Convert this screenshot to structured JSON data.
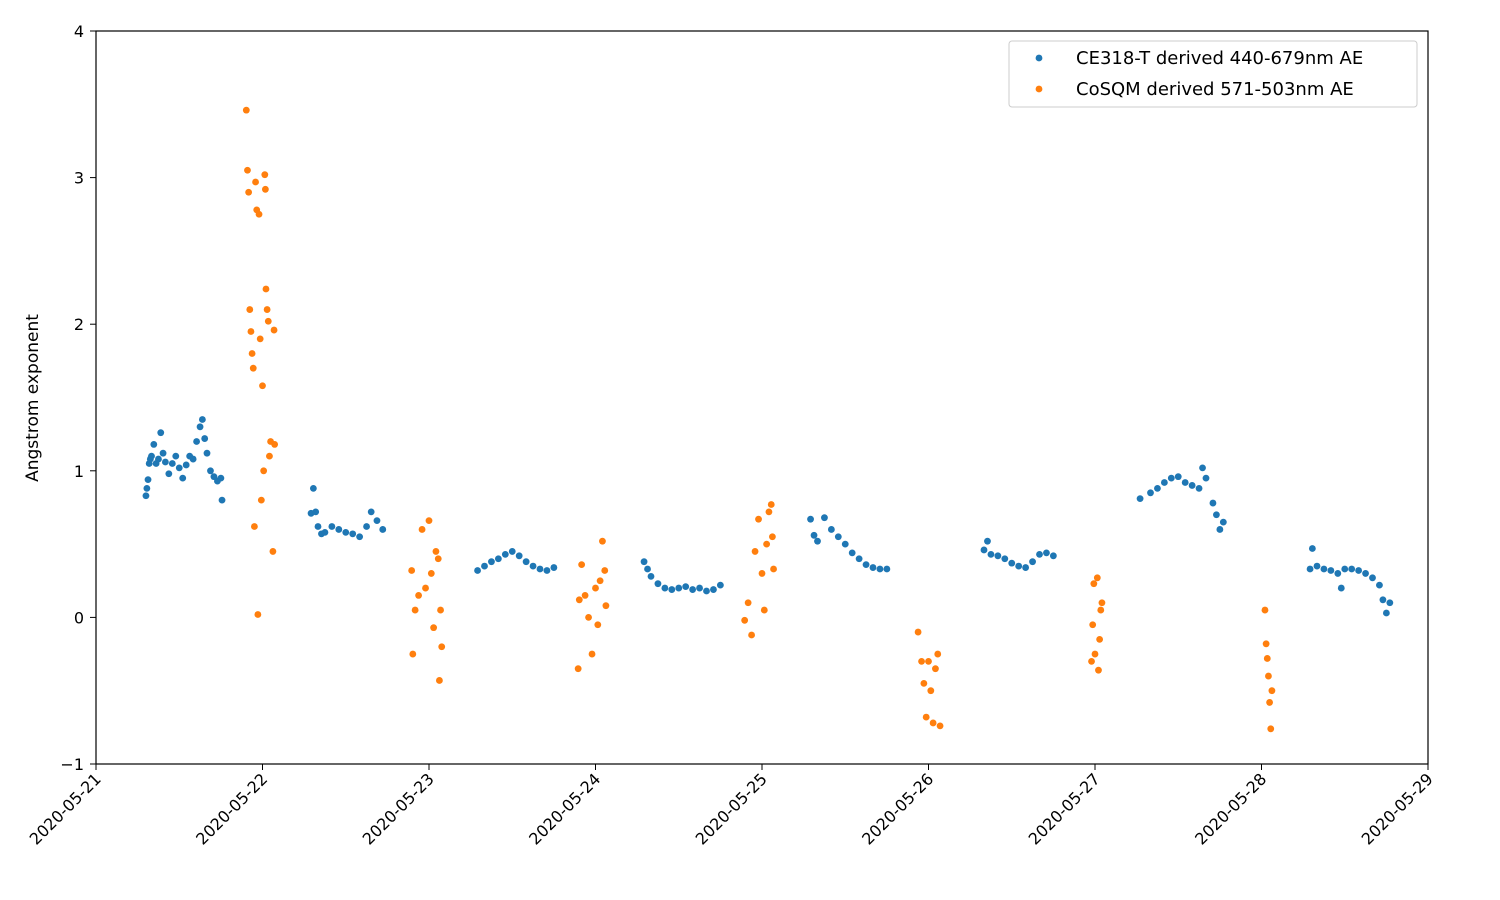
{
  "chart_data": {
    "type": "scatter",
    "title": "",
    "xlabel": "",
    "ylabel": "Angstrom exponent",
    "xlim": [
      "2020-05-21",
      "2020-05-29"
    ],
    "ylim": [
      -1,
      4
    ],
    "x_ticks": [
      "2020-05-21",
      "2020-05-22",
      "2020-05-23",
      "2020-05-24",
      "2020-05-25",
      "2020-05-26",
      "2020-05-27",
      "2020-05-28",
      "2020-05-29"
    ],
    "y_ticks": [
      "−1",
      "0",
      "1",
      "2",
      "3",
      "4"
    ],
    "grid": false,
    "legend_position": "top-right",
    "series": [
      {
        "name": "CE318-T derived 440-679nm AE",
        "color": "#1f77b4",
        "points": [
          [
            "2020-05-21 07:12",
            0.83
          ],
          [
            "2020-05-21 07:20",
            0.88
          ],
          [
            "2020-05-21 07:30",
            0.94
          ],
          [
            "2020-05-21 07:40",
            1.05
          ],
          [
            "2020-05-21 07:50",
            1.08
          ],
          [
            "2020-05-21 08:00",
            1.1
          ],
          [
            "2020-05-21 08:20",
            1.18
          ],
          [
            "2020-05-21 08:40",
            1.05
          ],
          [
            "2020-05-21 09:00",
            1.08
          ],
          [
            "2020-05-21 09:20",
            1.26
          ],
          [
            "2020-05-21 09:40",
            1.12
          ],
          [
            "2020-05-21 10:00",
            1.06
          ],
          [
            "2020-05-21 10:30",
            0.98
          ],
          [
            "2020-05-21 11:00",
            1.05
          ],
          [
            "2020-05-21 11:30",
            1.1
          ],
          [
            "2020-05-21 12:00",
            1.02
          ],
          [
            "2020-05-21 12:30",
            0.95
          ],
          [
            "2020-05-21 13:00",
            1.04
          ],
          [
            "2020-05-21 13:30",
            1.1
          ],
          [
            "2020-05-21 14:00",
            1.08
          ],
          [
            "2020-05-21 14:30",
            1.2
          ],
          [
            "2020-05-21 15:00",
            1.3
          ],
          [
            "2020-05-21 15:20",
            1.35
          ],
          [
            "2020-05-21 15:40",
            1.22
          ],
          [
            "2020-05-21 16:00",
            1.12
          ],
          [
            "2020-05-21 16:30",
            1.0
          ],
          [
            "2020-05-21 17:00",
            0.96
          ],
          [
            "2020-05-21 17:30",
            0.93
          ],
          [
            "2020-05-21 18:00",
            0.95
          ],
          [
            "2020-05-21 18:10",
            0.8
          ],
          [
            "2020-05-22 07:00",
            0.71
          ],
          [
            "2020-05-22 07:20",
            0.88
          ],
          [
            "2020-05-22 07:40",
            0.72
          ],
          [
            "2020-05-22 08:00",
            0.62
          ],
          [
            "2020-05-22 08:30",
            0.57
          ],
          [
            "2020-05-22 09:00",
            0.58
          ],
          [
            "2020-05-22 10:00",
            0.62
          ],
          [
            "2020-05-22 11:00",
            0.6
          ],
          [
            "2020-05-22 12:00",
            0.58
          ],
          [
            "2020-05-22 13:00",
            0.57
          ],
          [
            "2020-05-22 14:00",
            0.55
          ],
          [
            "2020-05-22 15:00",
            0.62
          ],
          [
            "2020-05-22 15:40",
            0.72
          ],
          [
            "2020-05-22 16:30",
            0.66
          ],
          [
            "2020-05-22 17:20",
            0.6
          ],
          [
            "2020-05-23 07:00",
            0.32
          ],
          [
            "2020-05-23 08:00",
            0.35
          ],
          [
            "2020-05-23 09:00",
            0.38
          ],
          [
            "2020-05-23 10:00",
            0.4
          ],
          [
            "2020-05-23 11:00",
            0.43
          ],
          [
            "2020-05-23 12:00",
            0.45
          ],
          [
            "2020-05-23 13:00",
            0.42
          ],
          [
            "2020-05-23 14:00",
            0.38
          ],
          [
            "2020-05-23 15:00",
            0.35
          ],
          [
            "2020-05-23 16:00",
            0.33
          ],
          [
            "2020-05-23 17:00",
            0.32
          ],
          [
            "2020-05-23 18:00",
            0.34
          ],
          [
            "2020-05-24 07:00",
            0.38
          ],
          [
            "2020-05-24 07:30",
            0.33
          ],
          [
            "2020-05-24 08:00",
            0.28
          ],
          [
            "2020-05-24 09:00",
            0.23
          ],
          [
            "2020-05-24 10:00",
            0.2
          ],
          [
            "2020-05-24 11:00",
            0.19
          ],
          [
            "2020-05-24 12:00",
            0.2
          ],
          [
            "2020-05-24 13:00",
            0.21
          ],
          [
            "2020-05-24 14:00",
            0.19
          ],
          [
            "2020-05-24 15:00",
            0.2
          ],
          [
            "2020-05-24 16:00",
            0.18
          ],
          [
            "2020-05-24 17:00",
            0.19
          ],
          [
            "2020-05-24 18:00",
            0.22
          ],
          [
            "2020-05-25 07:00",
            0.67
          ],
          [
            "2020-05-25 07:30",
            0.56
          ],
          [
            "2020-05-25 08:00",
            0.52
          ],
          [
            "2020-05-25 09:00",
            0.68
          ],
          [
            "2020-05-25 10:00",
            0.6
          ],
          [
            "2020-05-25 11:00",
            0.55
          ],
          [
            "2020-05-25 12:00",
            0.5
          ],
          [
            "2020-05-25 13:00",
            0.44
          ],
          [
            "2020-05-25 14:00",
            0.4
          ],
          [
            "2020-05-25 15:00",
            0.36
          ],
          [
            "2020-05-25 16:00",
            0.34
          ],
          [
            "2020-05-25 17:00",
            0.33
          ],
          [
            "2020-05-25 18:00",
            0.33
          ],
          [
            "2020-05-26 08:00",
            0.46
          ],
          [
            "2020-05-26 08:30",
            0.52
          ],
          [
            "2020-05-26 09:00",
            0.43
          ],
          [
            "2020-05-26 10:00",
            0.42
          ],
          [
            "2020-05-26 11:00",
            0.4
          ],
          [
            "2020-05-26 12:00",
            0.37
          ],
          [
            "2020-05-26 13:00",
            0.35
          ],
          [
            "2020-05-26 14:00",
            0.34
          ],
          [
            "2020-05-26 15:00",
            0.38
          ],
          [
            "2020-05-26 16:00",
            0.43
          ],
          [
            "2020-05-26 17:00",
            0.44
          ],
          [
            "2020-05-26 18:00",
            0.42
          ],
          [
            "2020-05-27 06:30",
            0.81
          ],
          [
            "2020-05-27 08:00",
            0.85
          ],
          [
            "2020-05-27 09:00",
            0.88
          ],
          [
            "2020-05-27 10:00",
            0.92
          ],
          [
            "2020-05-27 11:00",
            0.95
          ],
          [
            "2020-05-27 12:00",
            0.96
          ],
          [
            "2020-05-27 13:00",
            0.92
          ],
          [
            "2020-05-27 14:00",
            0.9
          ],
          [
            "2020-05-27 15:00",
            0.88
          ],
          [
            "2020-05-27 15:30",
            1.02
          ],
          [
            "2020-05-27 16:00",
            0.95
          ],
          [
            "2020-05-27 17:00",
            0.78
          ],
          [
            "2020-05-27 17:30",
            0.7
          ],
          [
            "2020-05-27 18:00",
            0.6
          ],
          [
            "2020-05-27 18:30",
            0.65
          ],
          [
            "2020-05-28 07:00",
            0.33
          ],
          [
            "2020-05-28 07:20",
            0.47
          ],
          [
            "2020-05-28 08:00",
            0.35
          ],
          [
            "2020-05-28 09:00",
            0.33
          ],
          [
            "2020-05-28 10:00",
            0.32
          ],
          [
            "2020-05-28 11:00",
            0.3
          ],
          [
            "2020-05-28 11:30",
            0.2
          ],
          [
            "2020-05-28 12:00",
            0.33
          ],
          [
            "2020-05-28 13:00",
            0.33
          ],
          [
            "2020-05-28 14:00",
            0.32
          ],
          [
            "2020-05-28 15:00",
            0.3
          ],
          [
            "2020-05-28 16:00",
            0.27
          ],
          [
            "2020-05-28 17:00",
            0.22
          ],
          [
            "2020-05-28 17:30",
            0.12
          ],
          [
            "2020-05-28 18:00",
            0.03
          ],
          [
            "2020-05-28 18:30",
            0.1
          ]
        ]
      },
      {
        "name": "CoSQM derived 571-503nm AE",
        "color": "#ff7f0e",
        "points": [
          [
            "2020-05-21 21:40",
            3.46
          ],
          [
            "2020-05-21 21:50",
            3.05
          ],
          [
            "2020-05-21 22:00",
            2.9
          ],
          [
            "2020-05-21 22:10",
            2.1
          ],
          [
            "2020-05-21 22:20",
            1.95
          ],
          [
            "2020-05-21 22:30",
            1.8
          ],
          [
            "2020-05-21 22:40",
            1.7
          ],
          [
            "2020-05-21 22:50",
            0.62
          ],
          [
            "2020-05-21 23:00",
            2.97
          ],
          [
            "2020-05-21 23:10",
            2.78
          ],
          [
            "2020-05-21 23:20",
            0.02
          ],
          [
            "2020-05-21 23:30",
            2.75
          ],
          [
            "2020-05-21 23:40",
            1.9
          ],
          [
            "2020-05-21 23:50",
            0.8
          ],
          [
            "2020-05-22 00:00",
            1.58
          ],
          [
            "2020-05-22 00:10",
            1.0
          ],
          [
            "2020-05-22 00:20",
            3.02
          ],
          [
            "2020-05-22 00:25",
            2.92
          ],
          [
            "2020-05-22 00:30",
            2.24
          ],
          [
            "2020-05-22 00:40",
            2.1
          ],
          [
            "2020-05-22 00:50",
            2.02
          ],
          [
            "2020-05-22 01:00",
            1.1
          ],
          [
            "2020-05-22 01:10",
            1.2
          ],
          [
            "2020-05-22 01:30",
            0.45
          ],
          [
            "2020-05-22 01:40",
            1.96
          ],
          [
            "2020-05-22 01:45",
            1.18
          ],
          [
            "2020-05-22 21:30",
            0.32
          ],
          [
            "2020-05-22 21:40",
            -0.25
          ],
          [
            "2020-05-22 22:00",
            0.05
          ],
          [
            "2020-05-22 22:30",
            0.15
          ],
          [
            "2020-05-22 23:00",
            0.6
          ],
          [
            "2020-05-22 23:30",
            0.2
          ],
          [
            "2020-05-23 00:00",
            0.66
          ],
          [
            "2020-05-23 00:20",
            0.3
          ],
          [
            "2020-05-23 00:40",
            -0.07
          ],
          [
            "2020-05-23 01:00",
            0.45
          ],
          [
            "2020-05-23 01:20",
            0.4
          ],
          [
            "2020-05-23 01:30",
            -0.43
          ],
          [
            "2020-05-23 01:40",
            0.05
          ],
          [
            "2020-05-23 01:50",
            -0.2
          ],
          [
            "2020-05-23 21:30",
            -0.35
          ],
          [
            "2020-05-23 21:40",
            0.12
          ],
          [
            "2020-05-23 22:00",
            0.36
          ],
          [
            "2020-05-23 22:30",
            0.15
          ],
          [
            "2020-05-23 23:00",
            0.0
          ],
          [
            "2020-05-23 23:30",
            -0.25
          ],
          [
            "2020-05-24 00:00",
            0.2
          ],
          [
            "2020-05-24 00:20",
            -0.05
          ],
          [
            "2020-05-24 00:40",
            0.25
          ],
          [
            "2020-05-24 01:00",
            0.52
          ],
          [
            "2020-05-24 01:20",
            0.32
          ],
          [
            "2020-05-24 01:30",
            0.08
          ],
          [
            "2020-05-24 21:30",
            -0.02
          ],
          [
            "2020-05-24 22:00",
            0.1
          ],
          [
            "2020-05-24 22:30",
            -0.12
          ],
          [
            "2020-05-24 23:00",
            0.45
          ],
          [
            "2020-05-24 23:30",
            0.67
          ],
          [
            "2020-05-25 00:00",
            0.3
          ],
          [
            "2020-05-25 00:20",
            0.05
          ],
          [
            "2020-05-25 00:40",
            0.5
          ],
          [
            "2020-05-25 01:00",
            0.72
          ],
          [
            "2020-05-25 01:20",
            0.77
          ],
          [
            "2020-05-25 01:30",
            0.55
          ],
          [
            "2020-05-25 01:40",
            0.33
          ],
          [
            "2020-05-25 22:30",
            -0.1
          ],
          [
            "2020-05-25 23:00",
            -0.3
          ],
          [
            "2020-05-25 23:20",
            -0.45
          ],
          [
            "2020-05-25 23:40",
            -0.68
          ],
          [
            "2020-05-26 00:00",
            -0.3
          ],
          [
            "2020-05-26 00:20",
            -0.5
          ],
          [
            "2020-05-26 00:40",
            -0.72
          ],
          [
            "2020-05-26 01:00",
            -0.35
          ],
          [
            "2020-05-26 01:20",
            -0.25
          ],
          [
            "2020-05-26 01:40",
            -0.74
          ],
          [
            "2020-05-26 23:30",
            -0.3
          ],
          [
            "2020-05-26 23:40",
            -0.05
          ],
          [
            "2020-05-26 23:50",
            0.23
          ],
          [
            "2020-05-27 00:00",
            -0.25
          ],
          [
            "2020-05-27 00:20",
            0.27
          ],
          [
            "2020-05-27 00:30",
            -0.36
          ],
          [
            "2020-05-27 00:40",
            -0.15
          ],
          [
            "2020-05-27 00:50",
            0.05
          ],
          [
            "2020-05-27 01:00",
            0.1
          ],
          [
            "2020-05-28 00:30",
            0.05
          ],
          [
            "2020-05-28 00:40",
            -0.18
          ],
          [
            "2020-05-28 00:50",
            -0.28
          ],
          [
            "2020-05-28 01:00",
            -0.4
          ],
          [
            "2020-05-28 01:10",
            -0.58
          ],
          [
            "2020-05-28 01:20",
            -0.76
          ],
          [
            "2020-05-28 01:30",
            -0.5
          ]
        ]
      }
    ]
  }
}
